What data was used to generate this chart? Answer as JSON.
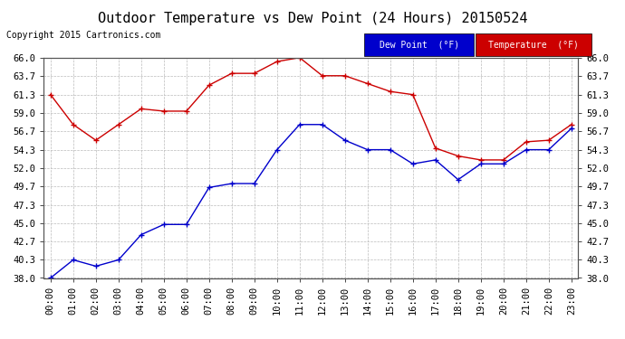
{
  "title": "Outdoor Temperature vs Dew Point (24 Hours) 20150524",
  "copyright": "Copyright 2015 Cartronics.com",
  "hours": [
    "00:00",
    "01:00",
    "02:00",
    "03:00",
    "04:00",
    "05:00",
    "06:00",
    "07:00",
    "08:00",
    "09:00",
    "10:00",
    "11:00",
    "12:00",
    "13:00",
    "14:00",
    "15:00",
    "16:00",
    "17:00",
    "18:00",
    "19:00",
    "20:00",
    "21:00",
    "22:00",
    "23:00"
  ],
  "temperature": [
    61.3,
    57.5,
    55.5,
    57.5,
    59.5,
    59.2,
    59.2,
    62.5,
    64.0,
    64.0,
    65.5,
    66.0,
    63.7,
    63.7,
    62.7,
    61.7,
    61.3,
    54.5,
    53.5,
    53.0,
    53.0,
    55.3,
    55.5,
    57.5
  ],
  "dew_point": [
    38.0,
    40.3,
    39.5,
    40.3,
    43.5,
    44.8,
    44.8,
    49.5,
    50.0,
    50.0,
    54.3,
    57.5,
    57.5,
    55.5,
    54.3,
    54.3,
    52.5,
    53.0,
    50.5,
    52.5,
    52.5,
    54.3,
    54.3,
    57.0
  ],
  "temp_color": "#cc0000",
  "dew_color": "#0000cc",
  "ylim_min": 38.0,
  "ylim_max": 66.0,
  "yticks": [
    38.0,
    40.3,
    42.7,
    45.0,
    47.3,
    49.7,
    52.0,
    54.3,
    56.7,
    59.0,
    61.3,
    63.7,
    66.0
  ],
  "bg_color": "#ffffff",
  "plot_bg": "#ffffff",
  "grid_color": "#bbbbbb",
  "legend_dew_bg": "#0000cc",
  "legend_temp_bg": "#cc0000",
  "legend_text_color": "#ffffff",
  "title_fontsize": 11,
  "copyright_fontsize": 7,
  "tick_fontsize": 7.5
}
